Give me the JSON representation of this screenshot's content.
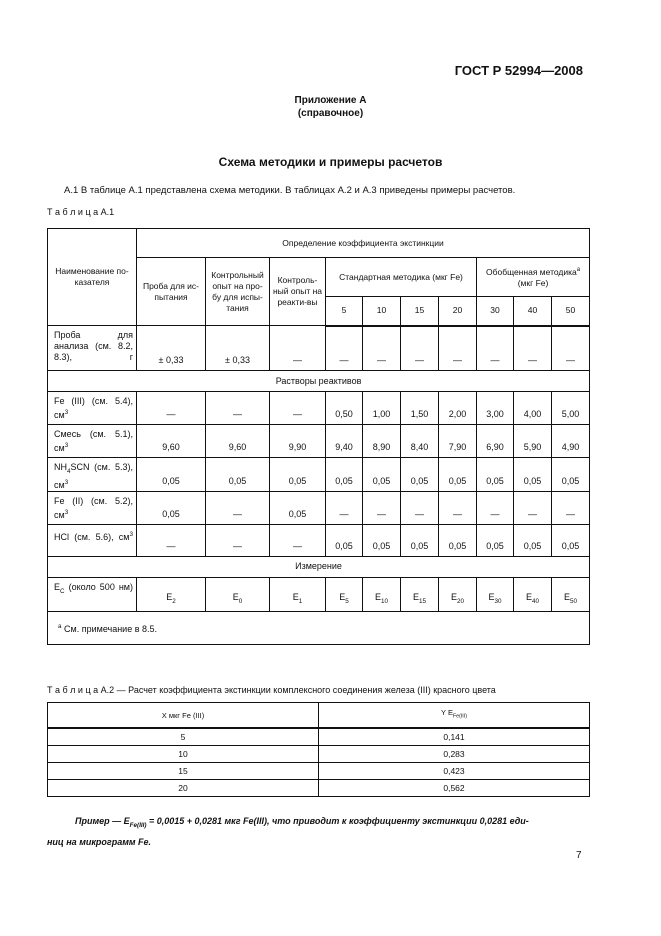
{
  "header": {
    "standard": "ГОСТ Р 52994—2008"
  },
  "appendix": {
    "title": "Приложение А",
    "subtitle": "(справочное)"
  },
  "section_title": "Схема методики и примеры расчетов",
  "intro": "А.1 В таблице А.1 представлена схема методики. В таблицах А.2 и А.3 приведены примеры расчетов.",
  "table1": {
    "caption": "Т а б л и ц а А.1",
    "col_name": "Наименование по-казателя",
    "group": "Определение коэффициента экстинкции",
    "col_sample": "Проба для ис-пытания",
    "col_control_sample": "Контрольный опыт на про-бу для испы-тания",
    "col_control_reagents": "Контроль-ный опыт на реакти-вы",
    "col_standard": "Стандартная методика (мкг Fe)",
    "col_generalized": "Обобщенная методика",
    "col_generalized_mark": "a",
    "col_generalized_unit": "(мкг Fe)",
    "amounts": [
      "5",
      "10",
      "15",
      "20",
      "30",
      "40",
      "50"
    ],
    "section_reagents": "Растворы реактивов",
    "section_measurement": "Измерение",
    "rows": [
      {
        "label": "Проба для анализа (см. 8.2, 8.3), г",
        "sup": "",
        "values": [
          "± 0,33",
          "± 0,33",
          "—",
          "—",
          "—",
          "—",
          "—",
          "—",
          "—",
          "—"
        ]
      },
      {
        "label": "Fe (III) (см. 5.4), см",
        "sup": "3",
        "values": [
          "—",
          "—",
          "—",
          "0,50",
          "1,00",
          "1,50",
          "2,00",
          "3,00",
          "4,00",
          "5,00"
        ]
      },
      {
        "label": "Смесь (см. 5.1), см",
        "sup": "3",
        "values": [
          "9,60",
          "9,60",
          "9,90",
          "9,40",
          "8,90",
          "8,40",
          "7,90",
          "6,90",
          "5,90",
          "4,90"
        ]
      },
      {
        "label_pre": "NH",
        "label_sub": "4",
        "label_post": "SCN (см. 5.3), см",
        "sup": "3",
        "values": [
          "0,05",
          "0,05",
          "0,05",
          "0,05",
          "0,05",
          "0,05",
          "0,05",
          "0,05",
          "0,05",
          "0,05"
        ]
      },
      {
        "label": "Fe (II) (см. 5.2), см",
        "sup": "3",
        "values": [
          "0,05",
          "—",
          "0,05",
          "—",
          "—",
          "—",
          "—",
          "—",
          "—",
          "—"
        ]
      },
      {
        "label": "HCl (см. 5.6), см",
        "sup": "3",
        "values": [
          "—",
          "—",
          "—",
          "0,05",
          "0,05",
          "0,05",
          "0,05",
          "0,05",
          "0,05",
          "0,05"
        ]
      }
    ],
    "measure_row": {
      "label": "E",
      "label_sub": "C",
      "label_post": "(около 500 нм)",
      "values": [
        [
          "E",
          "2"
        ],
        [
          "E",
          "0"
        ],
        [
          "E",
          "1"
        ],
        [
          "E",
          "5"
        ],
        [
          "E",
          "10"
        ],
        [
          "E",
          "15"
        ],
        [
          "E",
          "20"
        ],
        [
          "E",
          "30"
        ],
        [
          "E",
          "40"
        ],
        [
          "E",
          "50"
        ]
      ]
    },
    "footnote_mark": "a",
    "footnote": "См. примечание в 8.5."
  },
  "table2": {
    "caption": "Т а б л и ц а А.2 — Расчет коэффициента экстинкции комплексного соединения железа (III) красного цвета",
    "col_x": "X мкг Fe (III)",
    "col_y": "Y E",
    "col_y_sub": "Fe(III)",
    "rows": [
      [
        "5",
        "0,141"
      ],
      [
        "10",
        "0,283"
      ],
      [
        "15",
        "0,423"
      ],
      [
        "20",
        "0,562"
      ]
    ]
  },
  "example": {
    "prefix": "Пример — E",
    "sub": "Fe(III)",
    "text": " = 0,0015 + 0,0281 мкг Fe(III), что приводит к коэффициенту экстинкции 0,0281 еди-",
    "cont": "ниц на микрограмм Fe."
  },
  "page_number": "7"
}
